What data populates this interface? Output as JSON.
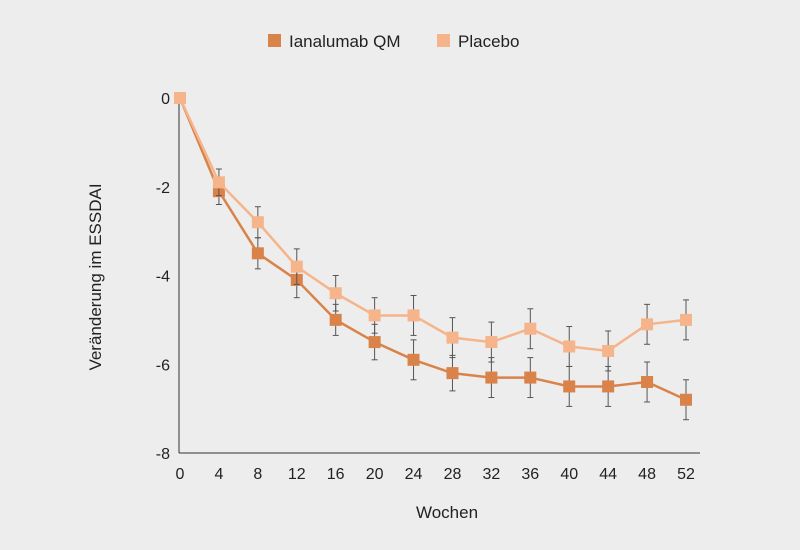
{
  "chart_data": {
    "type": "line",
    "title": "",
    "xlabel": "Wochen",
    "ylabel": "Veränderung im ESSDAI",
    "x": [
      0,
      4,
      8,
      12,
      16,
      20,
      24,
      28,
      32,
      36,
      40,
      44,
      48,
      52
    ],
    "xlim": [
      0,
      52
    ],
    "ylim": [
      -8,
      0
    ],
    "yticks": [
      0,
      -2,
      -4,
      -6,
      -8
    ],
    "grid": false,
    "legend_position": "top-center",
    "series": [
      {
        "name": "Ianalumab QM",
        "color": "#d9824a",
        "values": [
          0,
          -2.1,
          -3.5,
          -4.1,
          -5.0,
          -5.5,
          -5.9,
          -6.2,
          -6.3,
          -6.3,
          -6.5,
          -6.5,
          -6.4,
          -6.8
        ],
        "error": [
          0,
          0.3,
          0.35,
          0.4,
          0.35,
          0.4,
          0.45,
          0.4,
          0.45,
          0.45,
          0.45,
          0.45,
          0.45,
          0.45
        ]
      },
      {
        "name": "Placebo",
        "color": "#f5b48a",
        "values": [
          0,
          -1.9,
          -2.8,
          -3.8,
          -4.4,
          -4.9,
          -4.9,
          -5.4,
          -5.5,
          -5.2,
          -5.6,
          -5.7,
          -5.1,
          -5.0
        ],
        "error": [
          0,
          0.3,
          0.35,
          0.4,
          0.4,
          0.4,
          0.45,
          0.45,
          0.45,
          0.45,
          0.45,
          0.45,
          0.45,
          0.45
        ]
      }
    ]
  }
}
